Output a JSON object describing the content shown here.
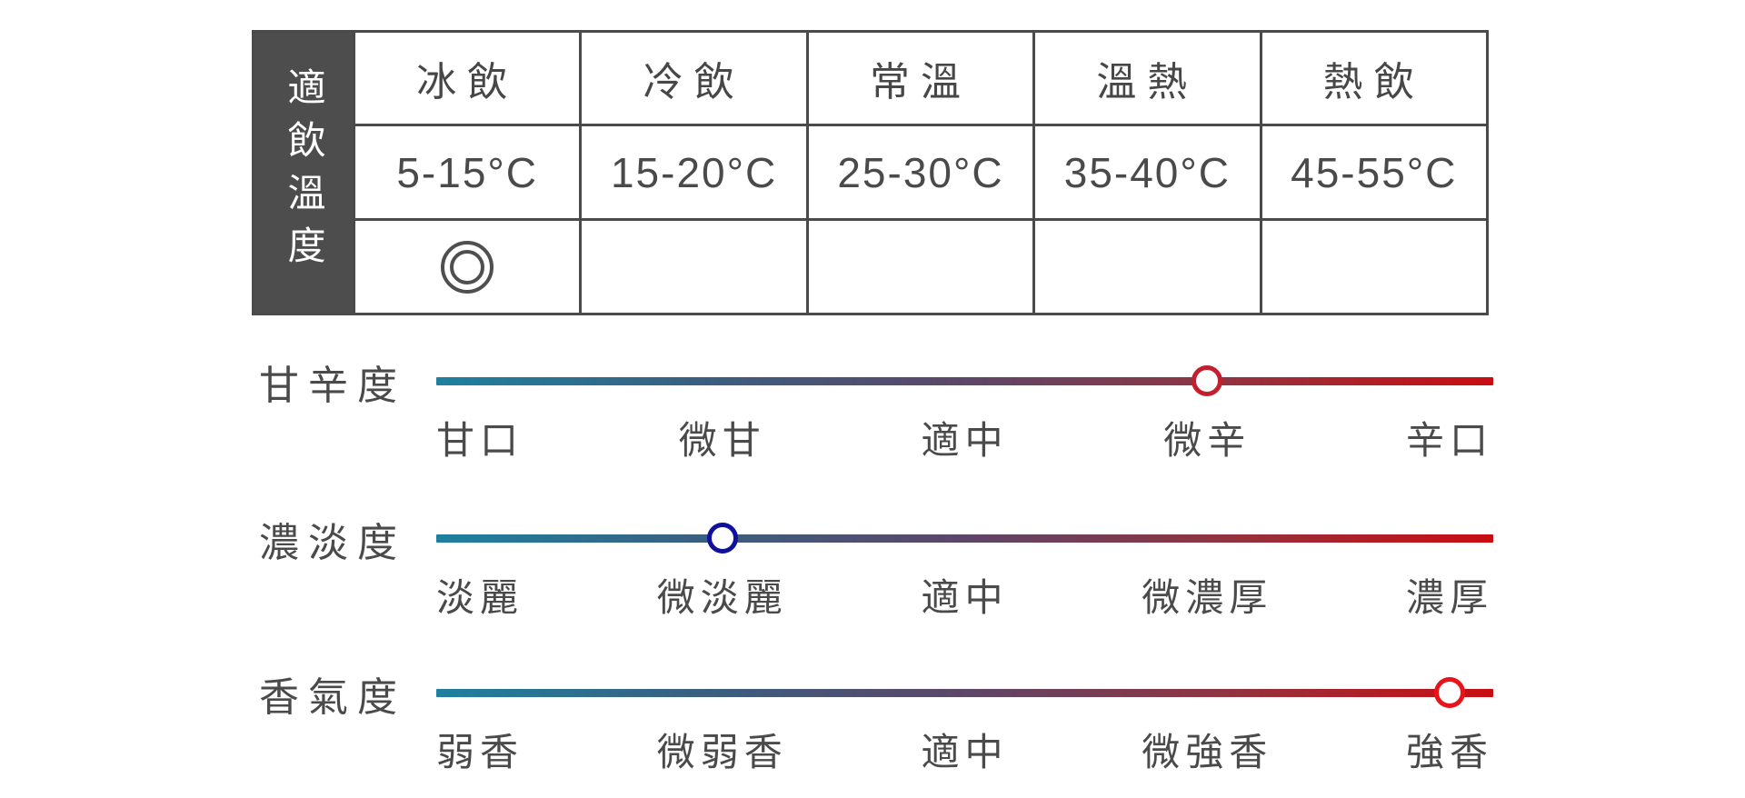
{
  "temperature_table": {
    "row_header": "適飲溫度",
    "columns": [
      {
        "label": "冰飲",
        "range": "5-15°C",
        "selected": true
      },
      {
        "label": "冷飲",
        "range": "15-20°C",
        "selected": false
      },
      {
        "label": "常溫",
        "range": "25-30°C",
        "selected": false
      },
      {
        "label": "溫熱",
        "range": "35-40°C",
        "selected": false
      },
      {
        "label": "熱飲",
        "range": "45-55°C",
        "selected": false
      }
    ],
    "selected_mark": "double-circle"
  },
  "sliders": [
    {
      "name": "甘辛度",
      "labels": [
        "甘口",
        "微甘",
        "適中",
        "微辛",
        "辛口"
      ],
      "marker": {
        "label_index": 3,
        "value": "微辛",
        "ring_color": "#c2202e"
      }
    },
    {
      "name": "濃淡度",
      "labels": [
        "淡麗",
        "微淡麗",
        "適中",
        "微濃厚",
        "濃厚"
      ],
      "marker": {
        "label_index": 1,
        "value": "微淡麗",
        "ring_color": "#10109b"
      }
    },
    {
      "name": "香氣度",
      "labels": [
        "弱香",
        "微弱香",
        "適中",
        "微強香",
        "強香"
      ],
      "marker": {
        "label_index": 4,
        "value": "強香",
        "ring_color": "#e8141a"
      }
    }
  ],
  "colors": {
    "table_border": "#4a4a4a",
    "table_header_bg": "#4d4d4d",
    "table_header_text": "#ffffff",
    "text": "#4a4a4a",
    "scale_gradient": [
      "#1e809f",
      "#3a5f80",
      "#5d4668",
      "#92333f",
      "#c90d12"
    ]
  },
  "chart_data": [
    {
      "type": "table",
      "title": "適飲溫度",
      "columns": [
        "冰飲",
        "冷飲",
        "常溫",
        "溫熱",
        "熱飲"
      ],
      "rows": [
        [
          "5-15°C",
          "15-20°C",
          "25-30°C",
          "35-40°C",
          "45-55°C"
        ],
        [
          "◎",
          "",
          "",
          "",
          ""
        ]
      ],
      "note": "double-circle mark under 冰飲 (5-15°C)"
    },
    {
      "type": "line",
      "title": "甘辛度",
      "categories": [
        "甘口",
        "微甘",
        "適中",
        "微辛",
        "辛口"
      ],
      "selected": "微辛",
      "selected_index": 3,
      "scale": "teal-to-red gradient, marker at 4 of 5"
    },
    {
      "type": "line",
      "title": "濃淡度",
      "categories": [
        "淡麗",
        "微淡麗",
        "適中",
        "微濃厚",
        "濃厚"
      ],
      "selected": "微淡麗",
      "selected_index": 1,
      "scale": "teal-to-red gradient, marker at 2 of 5"
    },
    {
      "type": "line",
      "title": "香氣度",
      "categories": [
        "弱香",
        "微弱香",
        "適中",
        "微強香",
        "強香"
      ],
      "selected": "強香",
      "selected_index": 4,
      "scale": "teal-to-red gradient, marker at 5 of 5"
    }
  ]
}
